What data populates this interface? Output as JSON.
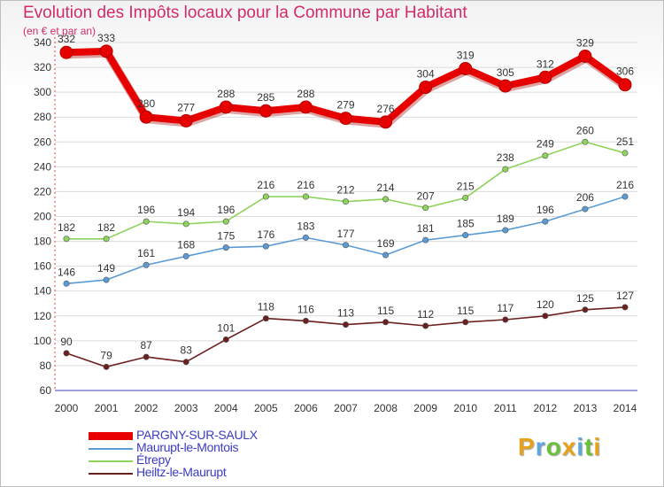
{
  "chart_data": {
    "type": "line",
    "title": "Evolution des Impôts locaux pour la Commune par Habitant",
    "subtitle": "(en € et par an)",
    "categories": [
      "2000",
      "2001",
      "2002",
      "2003",
      "2004",
      "2005",
      "2006",
      "2007",
      "2008",
      "2009",
      "2010",
      "2011",
      "2012",
      "2013",
      "2014"
    ],
    "ylim": [
      60,
      340
    ],
    "yticks": [
      60,
      80,
      100,
      120,
      140,
      160,
      180,
      200,
      220,
      240,
      260,
      280,
      300,
      320,
      340
    ],
    "series": [
      {
        "name": "PARGNY-SUR-SAULX",
        "color": "#e60000",
        "values": [
          332,
          333,
          280,
          277,
          288,
          285,
          288,
          279,
          276,
          304,
          319,
          305,
          312,
          329,
          306
        ]
      },
      {
        "name": "Maurupt-le-Montois",
        "color": "#5b9bd5",
        "values": [
          146,
          149,
          161,
          168,
          175,
          176,
          183,
          177,
          169,
          181,
          185,
          189,
          196,
          206,
          216
        ]
      },
      {
        "name": "Étrepy",
        "color": "#8ed45c",
        "values": [
          182,
          182,
          196,
          194,
          196,
          216,
          216,
          212,
          214,
          207,
          215,
          238,
          249,
          260,
          251
        ]
      },
      {
        "name": "Heiltz-le-Maurupt",
        "color": "#6b1f1f",
        "values": [
          90,
          79,
          87,
          83,
          101,
          118,
          116,
          113,
          115,
          112,
          115,
          117,
          120,
          125,
          127
        ]
      }
    ]
  },
  "logo": {
    "letters": [
      "P",
      "r",
      "o",
      "x",
      "i",
      "t",
      "i"
    ],
    "colors": [
      "#e8a21a",
      "#5aa7de",
      "#6bbf3b",
      "#e8a21a",
      "#5aa7de",
      "#6bbf3b",
      "#e8a21a"
    ]
  }
}
